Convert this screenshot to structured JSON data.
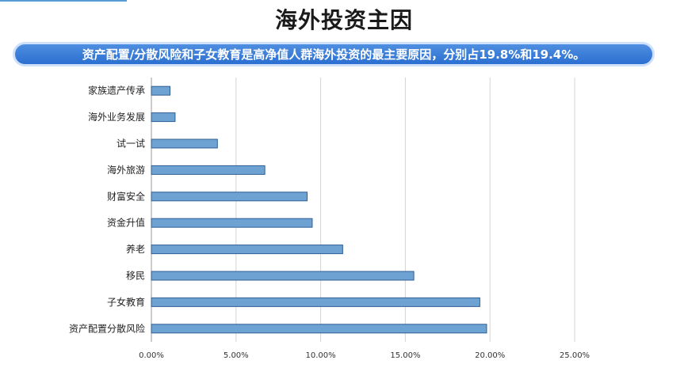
{
  "header": {
    "title": "海外投资主因",
    "banner": "资产配置/分散风险和子女教育是高净值人群海外投资的最主要原因，分别占19.8%和19.4%。",
    "accent_color": "#2b6fd0"
  },
  "chart_data": {
    "type": "bar",
    "orientation": "horizontal",
    "categories": [
      "家族遗产传承",
      "海外业务发展",
      "试一试",
      "海外旅游",
      "财富安全",
      "资金升值",
      "养老",
      "移民",
      "子女教育",
      "资产配置分散风险"
    ],
    "values": [
      1.1,
      1.4,
      3.9,
      6.7,
      9.2,
      9.5,
      11.3,
      15.5,
      19.4,
      19.8
    ],
    "ticks": [
      "0.00%",
      "5.00%",
      "10.00%",
      "15.00%",
      "20.00%",
      "25.00%"
    ],
    "xlim": [
      0,
      25
    ],
    "grid": true,
    "bar_color": "#6ea2d3",
    "bar_edge_color": "#2f5f95"
  }
}
